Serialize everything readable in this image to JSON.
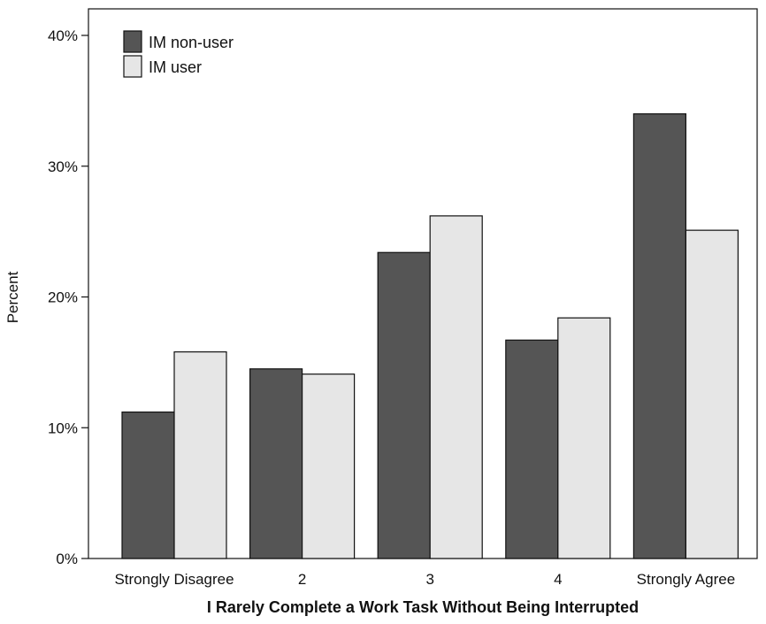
{
  "chart_data": {
    "type": "bar",
    "categories": [
      "Strongly Disagree",
      "2",
      "3",
      "4",
      "Strongly Agree"
    ],
    "series": [
      {
        "name": "IM non-user",
        "values": [
          11.2,
          14.5,
          23.4,
          16.7,
          34.0
        ],
        "color": "#555555"
      },
      {
        "name": "IM user",
        "values": [
          15.8,
          14.1,
          26.2,
          18.4,
          25.1
        ],
        "color": "#e6e6e6"
      }
    ],
    "xlabel": "I Rarely Complete a Work Task Without Being Interrupted",
    "ylabel": "Percent",
    "ylim": [
      0,
      40
    ],
    "yticks": [
      0,
      10,
      20,
      30,
      40
    ],
    "ytick_labels": [
      "0%",
      "10%",
      "20%",
      "30%",
      "40%"
    ],
    "grid": false,
    "legend_position": "top-left"
  }
}
